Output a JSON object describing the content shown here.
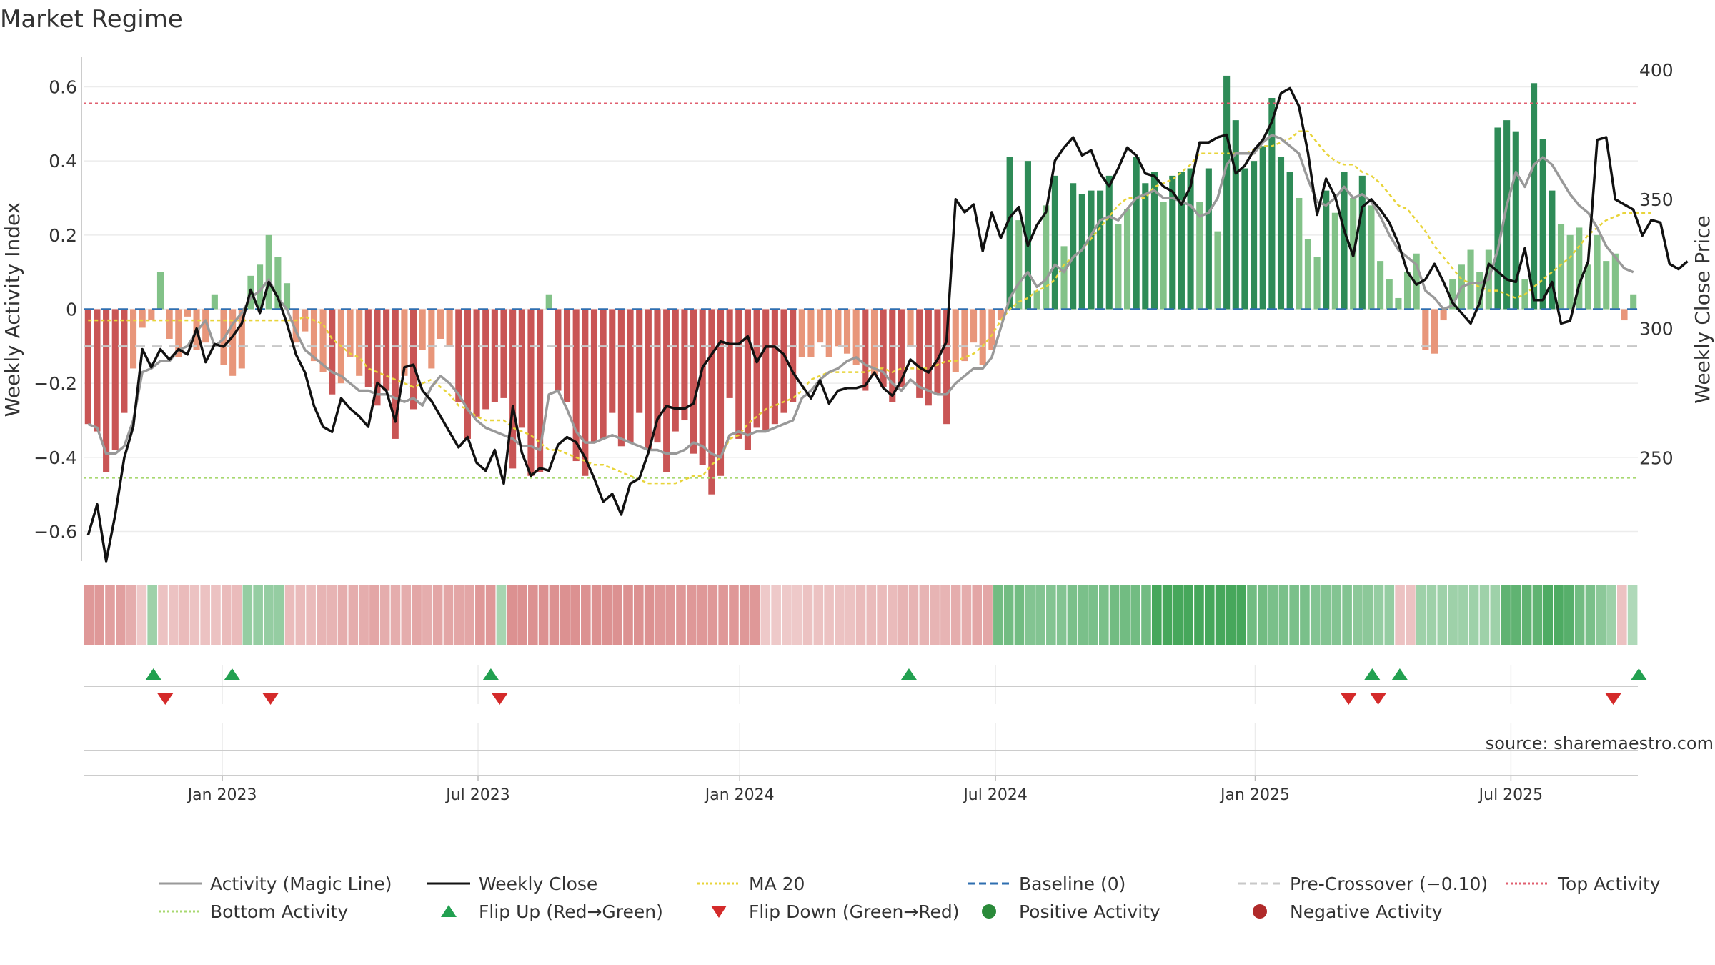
{
  "chart_data": {
    "type": "bar",
    "title": "Market Regime",
    "ylabel_left": "Weekly Activity Index",
    "ylabel_right": "Weekly Close Price",
    "source": "source: sharemaestro.com",
    "ylim_left": [
      -0.68,
      0.68
    ],
    "ylim_right": [
      210,
      405
    ],
    "yticks_left": [
      -0.6,
      -0.4,
      -0.2,
      0,
      0.2,
      0.4,
      0.6
    ],
    "ytick_labels_left": [
      "−0.6",
      "−0.4",
      "−0.2",
      "0",
      "0.2",
      "0.4",
      "0.6"
    ],
    "yticks_right": [
      250,
      300,
      350,
      400
    ],
    "ytick_labels_right": [
      "250",
      "300",
      "350",
      "400"
    ],
    "x_range": [
      0,
      158
    ],
    "xticks": [
      {
        "pos": 14.1,
        "label": "Jan 2023"
      },
      {
        "pos": 40.1,
        "label": "Jul 2023"
      },
      {
        "pos": 66.7,
        "label": "Jan 2024"
      },
      {
        "pos": 92.7,
        "label": "Jul 2024"
      },
      {
        "pos": 119.1,
        "label": "Jan 2025"
      },
      {
        "pos": 145.1,
        "label": "Jul 2025"
      }
    ],
    "top_activity": 0.555,
    "bottom_activity": -0.455,
    "pre_crossover": -0.1,
    "baseline": 0,
    "colors": {
      "pos_strong": "#2e8b57",
      "pos_weak": "#82c288",
      "neg_strong": "#c95555",
      "neg_weak": "#e8967a",
      "magic_line": "#999999",
      "weekly_close": "#111111",
      "ma20": "#e8d43a",
      "baseline": "#2f6fb0",
      "pre_crossover": "#c8c8c8",
      "top_activity": "#e06070",
      "bottom_activity": "#a8d870",
      "flip_up": "#22a050",
      "flip_down": "#d42a2a",
      "positive_dot": "#2a8a3a",
      "negative_dot": "#b02a2a"
    },
    "activity": [
      -0.31,
      -0.33,
      -0.44,
      -0.38,
      -0.28,
      -0.16,
      -0.05,
      -0.03,
      0.1,
      -0.08,
      -0.13,
      -0.02,
      -0.11,
      -0.09,
      0.04,
      -0.15,
      -0.18,
      -0.16,
      0.09,
      0.12,
      0.2,
      0.14,
      0.07,
      -0.09,
      -0.06,
      -0.14,
      -0.17,
      -0.23,
      -0.2,
      -0.13,
      -0.18,
      -0.21,
      -0.26,
      -0.22,
      -0.35,
      -0.18,
      -0.27,
      -0.11,
      -0.16,
      -0.08,
      -0.1,
      -0.25,
      -0.35,
      -0.29,
      -0.27,
      -0.25,
      -0.24,
      -0.43,
      -0.32,
      -0.45,
      -0.44,
      0.04,
      -0.22,
      -0.25,
      -0.41,
      -0.45,
      -0.36,
      -0.35,
      -0.28,
      -0.37,
      -0.36,
      -0.28,
      -0.38,
      -0.36,
      -0.44,
      -0.33,
      -0.3,
      -0.39,
      -0.42,
      -0.5,
      -0.45,
      -0.24,
      -0.35,
      -0.38,
      -0.32,
      -0.33,
      -0.31,
      -0.28,
      -0.25,
      -0.13,
      -0.13,
      -0.09,
      -0.13,
      -0.1,
      -0.12,
      -0.15,
      -0.22,
      -0.18,
      -0.21,
      -0.25,
      -0.21,
      -0.1,
      -0.24,
      -0.26,
      -0.23,
      -0.31,
      -0.17,
      -0.14,
      -0.09,
      -0.15,
      -0.11,
      -0.03,
      0.41,
      0.24,
      0.4,
      0.05,
      0.28,
      0.36,
      0.17,
      0.34,
      0.31,
      0.32,
      0.32,
      0.36,
      0.23,
      0.27,
      0.41,
      0.34,
      0.37,
      0.29,
      0.36,
      0.37,
      0.38,
      0.29,
      0.38,
      0.21,
      0.63,
      0.51,
      0.38,
      0.4,
      0.44,
      0.57,
      0.41,
      0.37,
      0.3,
      0.19,
      0.14,
      0.32,
      0.26,
      0.37,
      0.3,
      0.36,
      0.28,
      0.13,
      0.08,
      0.03,
      0.1,
      0.15,
      -0.11,
      -0.12,
      -0.03,
      0.08,
      0.12,
      0.16,
      0.1,
      0.16,
      0.49,
      0.51,
      0.48,
      0.08,
      0.61,
      0.46,
      0.32,
      0.23,
      0.2,
      0.22,
      0.12,
      0.2,
      0.13,
      0.15,
      -0.03,
      0.04
    ],
    "magic_line": [
      -0.31,
      -0.32,
      -0.39,
      -0.39,
      -0.37,
      -0.3,
      -0.17,
      -0.16,
      -0.14,
      -0.14,
      -0.11,
      -0.1,
      -0.06,
      -0.03,
      -0.1,
      -0.08,
      -0.04,
      -0.01,
      0.03,
      0.05,
      0.08,
      0.03,
      0.0,
      -0.06,
      -0.11,
      -0.13,
      -0.15,
      -0.17,
      -0.18,
      -0.2,
      -0.22,
      -0.22,
      -0.23,
      -0.23,
      -0.24,
      -0.25,
      -0.24,
      -0.26,
      -0.21,
      -0.18,
      -0.2,
      -0.23,
      -0.27,
      -0.3,
      -0.32,
      -0.33,
      -0.34,
      -0.35,
      -0.37,
      -0.37,
      -0.38,
      -0.23,
      -0.22,
      -0.27,
      -0.33,
      -0.36,
      -0.36,
      -0.35,
      -0.34,
      -0.35,
      -0.36,
      -0.37,
      -0.38,
      -0.38,
      -0.39,
      -0.39,
      -0.38,
      -0.36,
      -0.37,
      -0.39,
      -0.4,
      -0.34,
      -0.33,
      -0.34,
      -0.33,
      -0.33,
      -0.32,
      -0.31,
      -0.3,
      -0.24,
      -0.22,
      -0.19,
      -0.17,
      -0.16,
      -0.14,
      -0.13,
      -0.15,
      -0.16,
      -0.17,
      -0.2,
      -0.22,
      -0.19,
      -0.21,
      -0.22,
      -0.23,
      -0.23,
      -0.2,
      -0.18,
      -0.16,
      -0.16,
      -0.13,
      -0.05,
      0.03,
      0.07,
      0.1,
      0.06,
      0.08,
      0.12,
      0.1,
      0.14,
      0.16,
      0.2,
      0.24,
      0.25,
      0.24,
      0.27,
      0.3,
      0.31,
      0.32,
      0.3,
      0.3,
      0.29,
      0.28,
      0.25,
      0.26,
      0.3,
      0.39,
      0.42,
      0.42,
      0.42,
      0.45,
      0.47,
      0.46,
      0.44,
      0.42,
      0.35,
      0.29,
      0.28,
      0.3,
      0.33,
      0.3,
      0.31,
      0.29,
      0.25,
      0.2,
      0.16,
      0.14,
      0.12,
      0.05,
      0.03,
      0.0,
      0.01,
      0.06,
      0.07,
      0.07,
      0.08,
      0.16,
      0.28,
      0.37,
      0.33,
      0.39,
      0.41,
      0.39,
      0.35,
      0.31,
      0.28,
      0.26,
      0.22,
      0.17,
      0.14,
      0.11,
      0.1
    ],
    "weekly_close": [
      220,
      232,
      210,
      228,
      250,
      262,
      292,
      285,
      292,
      288,
      292,
      290,
      300,
      287,
      294,
      293,
      297,
      302,
      315,
      306,
      318,
      312,
      302,
      290,
      283,
      270,
      262,
      260,
      273,
      269,
      266,
      262,
      279,
      276,
      264,
      285,
      286,
      276,
      272,
      266,
      260,
      254,
      258,
      248,
      245,
      253,
      240,
      270,
      252,
      243,
      246,
      245,
      255,
      258,
      256,
      250,
      242,
      233,
      236,
      228,
      240,
      242,
      252,
      265,
      270,
      269,
      269,
      271,
      285,
      290,
      295,
      294,
      294,
      297,
      287,
      293,
      293,
      290,
      283,
      278,
      273,
      280,
      271,
      276,
      277,
      277,
      278,
      283,
      277,
      274,
      280,
      288,
      285,
      283,
      288,
      295,
      350,
      345,
      348,
      330,
      345,
      335,
      343,
      347,
      332,
      340,
      345,
      365,
      370,
      374,
      367,
      369,
      360,
      355,
      362,
      370,
      367,
      360,
      359,
      355,
      353,
      348,
      355,
      372,
      372,
      374,
      375,
      360,
      363,
      369,
      373,
      380,
      391,
      393,
      386,
      368,
      344,
      358,
      351,
      338,
      328,
      347,
      350,
      346,
      341,
      333,
      322,
      317,
      319,
      325,
      318,
      310,
      306,
      302,
      310,
      325,
      322,
      319,
      318,
      331,
      311,
      311,
      318,
      302,
      303,
      317,
      326,
      373,
      374,
      350,
      348,
      346,
      336,
      342,
      341,
      325,
      323,
      326
    ],
    "ma20": [
      -0.03,
      -0.03,
      -0.03,
      -0.03,
      -0.03,
      -0.03,
      -0.03,
      -0.03,
      -0.03,
      -0.03,
      -0.03,
      -0.03,
      -0.03,
      -0.03,
      -0.03,
      -0.03,
      -0.03,
      -0.03,
      -0.03,
      -0.03,
      -0.03,
      -0.03,
      -0.03,
      -0.03,
      -0.02,
      -0.03,
      -0.04,
      -0.08,
      -0.1,
      -0.12,
      -0.13,
      -0.16,
      -0.17,
      -0.18,
      -0.19,
      -0.2,
      -0.21,
      -0.2,
      -0.19,
      -0.21,
      -0.23,
      -0.26,
      -0.27,
      -0.29,
      -0.3,
      -0.3,
      -0.3,
      -0.32,
      -0.33,
      -0.34,
      -0.36,
      -0.38,
      -0.38,
      -0.39,
      -0.4,
      -0.41,
      -0.42,
      -0.42,
      -0.43,
      -0.44,
      -0.45,
      -0.46,
      -0.47,
      -0.47,
      -0.47,
      -0.47,
      -0.46,
      -0.45,
      -0.45,
      -0.42,
      -0.4,
      -0.35,
      -0.34,
      -0.31,
      -0.29,
      -0.27,
      -0.26,
      -0.25,
      -0.24,
      -0.22,
      -0.19,
      -0.18,
      -0.17,
      -0.17,
      -0.17,
      -0.17,
      -0.17,
      -0.16,
      -0.16,
      -0.17,
      -0.16,
      -0.16,
      -0.16,
      -0.16,
      -0.15,
      -0.14,
      -0.14,
      -0.13,
      -0.12,
      -0.1,
      -0.07,
      -0.03,
      0.0,
      0.02,
      0.03,
      0.05,
      0.06,
      0.08,
      0.12,
      0.14,
      0.16,
      0.19,
      0.22,
      0.25,
      0.28,
      0.3,
      0.3,
      0.3,
      0.33,
      0.34,
      0.35,
      0.37,
      0.39,
      0.42,
      0.42,
      0.42,
      0.42,
      0.42,
      0.42,
      0.43,
      0.44,
      0.44,
      0.45,
      0.46,
      0.48,
      0.48,
      0.45,
      0.42,
      0.4,
      0.39,
      0.39,
      0.37,
      0.36,
      0.34,
      0.31,
      0.28,
      0.27,
      0.24,
      0.21,
      0.17,
      0.14,
      0.11,
      0.08,
      0.07,
      0.06,
      0.05,
      0.05,
      0.04,
      0.03,
      0.04,
      0.06,
      0.08,
      0.1,
      0.12,
      0.14,
      0.17,
      0.2,
      0.22,
      0.24,
      0.25,
      0.26,
      0.26,
      0.26,
      0.26
    ],
    "regime_strip": [
      -0.55,
      -0.55,
      -0.5,
      -0.5,
      -0.4,
      -0.2,
      0.3,
      -0.25,
      -0.25,
      -0.3,
      -0.25,
      -0.25,
      -0.25,
      -0.3,
      -0.3,
      0.35,
      0.35,
      0.35,
      0.35,
      -0.3,
      -0.3,
      -0.3,
      -0.35,
      -0.35,
      -0.4,
      -0.4,
      -0.4,
      -0.45,
      -0.4,
      -0.4,
      -0.4,
      -0.45,
      -0.4,
      -0.45,
      -0.45,
      -0.45,
      -0.45,
      -0.55,
      -0.55,
      0.25,
      -0.6,
      -0.6,
      -0.6,
      -0.6,
      -0.6,
      -0.6,
      -0.6,
      -0.6,
      -0.6,
      -0.6,
      -0.6,
      -0.6,
      -0.6,
      -0.6,
      -0.55,
      -0.55,
      -0.55,
      -0.55,
      -0.55,
      -0.55,
      -0.55,
      -0.55,
      -0.55,
      -0.55,
      -0.2,
      -0.2,
      -0.2,
      -0.2,
      -0.25,
      -0.25,
      -0.25,
      -0.25,
      -0.25,
      -0.3,
      -0.3,
      -0.3,
      -0.3,
      -0.35,
      -0.35,
      -0.35,
      -0.35,
      -0.35,
      -0.4,
      -0.4,
      -0.45,
      -0.45,
      0.55,
      0.55,
      0.55,
      0.45,
      0.45,
      0.45,
      0.45,
      0.5,
      0.5,
      0.5,
      0.5,
      0.55,
      0.55,
      0.55,
      0.55,
      0.8,
      0.8,
      0.8,
      0.8,
      0.8,
      0.8,
      0.8,
      0.8,
      0.8,
      0.55,
      0.55,
      0.5,
      0.5,
      0.5,
      0.5,
      0.45,
      0.45,
      0.45,
      0.45,
      0.4,
      0.4,
      0.35,
      0.35,
      -0.25,
      -0.25,
      0.3,
      0.3,
      0.3,
      0.3,
      0.3,
      0.3,
      0.3,
      0.3,
      0.65,
      0.65,
      0.65,
      0.65,
      0.75,
      0.75,
      0.7,
      0.55,
      0.5,
      0.4,
      0.3,
      -0.25,
      0.2
    ],
    "flip_up": [
      7.1,
      15.1,
      41.4,
      83.9,
      131.0,
      133.8,
      158.1
    ],
    "flip_down": [
      8.3,
      19.0,
      42.3,
      128.6,
      131.6,
      155.5
    ],
    "legend": [
      {
        "label": "Activity (Magic Line)",
        "kind": "line",
        "color": "#999999",
        "dash": ""
      },
      {
        "label": "Weekly Close",
        "kind": "line",
        "color": "#111111",
        "dash": ""
      },
      {
        "label": "MA 20",
        "kind": "line",
        "color": "#e8d43a",
        "dash": "3 3"
      },
      {
        "label": "Baseline (0)",
        "kind": "line",
        "color": "#2f6fb0",
        "dash": "10 6"
      },
      {
        "label": "Pre-Crossover (−0.10)",
        "kind": "line",
        "color": "#c8c8c8",
        "dash": "10 6"
      },
      {
        "label": "Top Activity",
        "kind": "line",
        "color": "#e06070",
        "dash": "3 3"
      },
      {
        "label": "Bottom Activity",
        "kind": "line",
        "color": "#a8d870",
        "dash": "3 3"
      },
      {
        "label": "Flip Up (Red→Green)",
        "kind": "tri-up",
        "color": "#22a050",
        "dash": ""
      },
      {
        "label": "Flip Down (Green→Red)",
        "kind": "tri-down",
        "color": "#d42a2a",
        "dash": ""
      },
      {
        "label": "Positive Activity",
        "kind": "dot",
        "color": "#2a8a3a",
        "dash": ""
      },
      {
        "label": "Negative Activity",
        "kind": "dot",
        "color": "#b02a2a",
        "dash": ""
      }
    ]
  }
}
